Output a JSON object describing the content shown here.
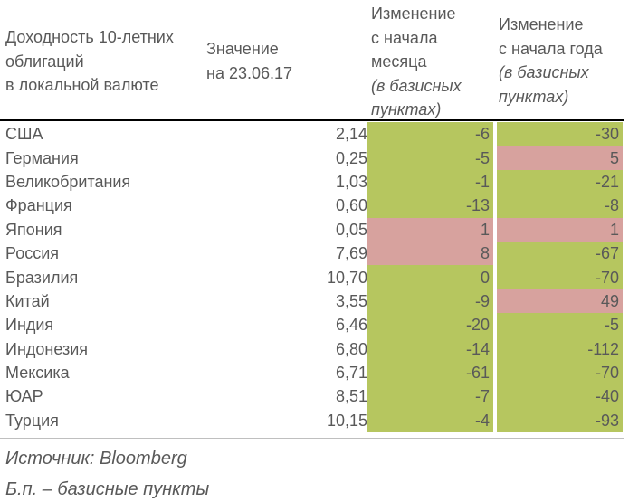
{
  "header": {
    "col_name": [
      "Доходность 10-летних",
      "облигаций",
      "в локальной валюте"
    ],
    "col_value": [
      "Значение",
      "на 23.06.17"
    ],
    "col_month": [
      "Изменение",
      "с начала",
      "месяца"
    ],
    "col_month_unit": [
      "(в базисных",
      "пунктах)"
    ],
    "col_year": [
      "Изменение",
      "с начала года"
    ],
    "col_year_unit": [
      "(в базисных",
      "пунктах)"
    ]
  },
  "rows": [
    {
      "country": "США",
      "value": "2,14",
      "month": "-6",
      "year": "-30"
    },
    {
      "country": "Германия",
      "value": "0,25",
      "month": "-5",
      "year": "5"
    },
    {
      "country": "Великобритания",
      "value": "1,03",
      "month": "-1",
      "year": "-21"
    },
    {
      "country": "Франция",
      "value": "0,60",
      "month": "-13",
      "year": "-8"
    },
    {
      "country": "Япония",
      "value": "0,05",
      "month": "1",
      "year": "1"
    },
    {
      "country": "Россия",
      "value": "7,69",
      "month": "8",
      "year": "-67"
    },
    {
      "country": "Бразилия",
      "value": "10,70",
      "month": "0",
      "year": "-70"
    },
    {
      "country": "Китай",
      "value": "3,55",
      "month": "-9",
      "year": "49"
    },
    {
      "country": "Индия",
      "value": "6,46",
      "month": "-20",
      "year": "-5"
    },
    {
      "country": "Индонезия",
      "value": "6,80",
      "month": "-14",
      "year": "-112"
    },
    {
      "country": "Мексика",
      "value": "6,71",
      "month": "-61",
      "year": "-70"
    },
    {
      "country": "ЮАР",
      "value": "8,51",
      "month": "-7",
      "year": "-40"
    },
    {
      "country": "Турция",
      "value": "10,15",
      "month": "-4",
      "year": "-93"
    }
  ],
  "colors": {
    "positive": "#d7a29e",
    "non_positive": "#b6c65f"
  },
  "footer": {
    "source": "Источник: Bloomberg",
    "abbr": "Б.п. – базисные пункты"
  }
}
